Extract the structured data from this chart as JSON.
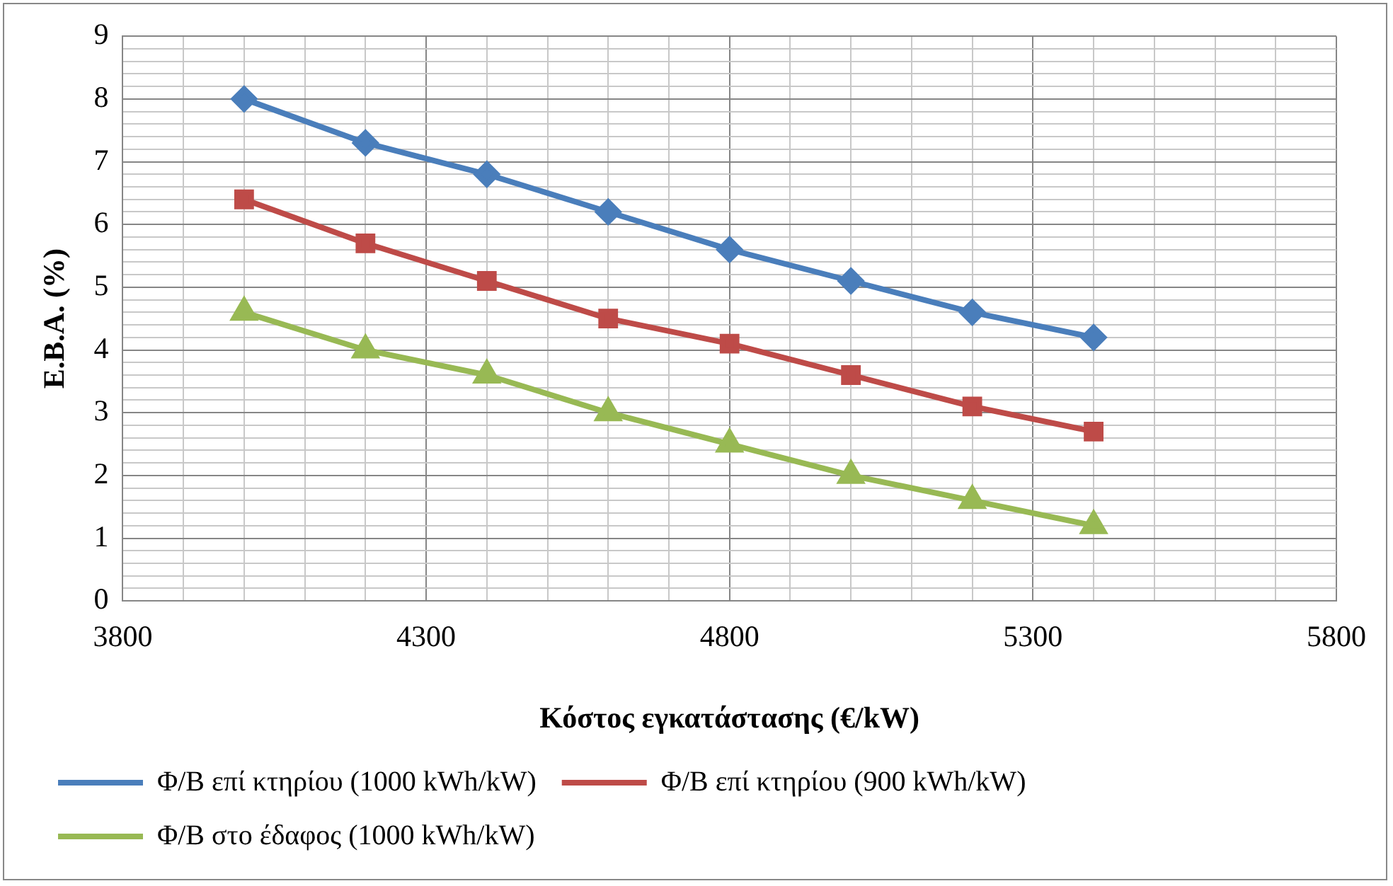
{
  "chart_data": {
    "type": "line",
    "xlabel": "Κόστος εγκατάστασης (€/kW)",
    "ylabel": "Ε.Β.Α. (%)",
    "x": [
      4000,
      4200,
      4400,
      4600,
      4800,
      5000,
      5200,
      5400
    ],
    "series": [
      {
        "name": "Φ/Β επί κτηρίου (1000 kWh/kW)",
        "color": "#4a7ebb",
        "marker": "diamond",
        "values": [
          8.0,
          7.3,
          6.8,
          6.2,
          5.6,
          5.1,
          4.6,
          4.2
        ]
      },
      {
        "name": "Φ/Β επί κτηρίου (900 kWh/kW)",
        "color": "#be4b48",
        "marker": "square",
        "values": [
          6.4,
          5.7,
          5.1,
          4.5,
          4.1,
          3.6,
          3.1,
          2.7
        ]
      },
      {
        "name": "Φ/Β στο έδαφος (1000 kWh/kW)",
        "color": "#98b954",
        "marker": "triangle",
        "values": [
          4.6,
          4.0,
          3.6,
          3.0,
          2.5,
          2.0,
          1.6,
          1.2
        ]
      }
    ],
    "xlim": [
      3800,
      5800
    ],
    "xticks": [
      3800,
      {
        "value": 3900,
        "label": null
      },
      {
        "value": 4000,
        "label": null
      },
      {
        "value": 4100,
        "label": null
      },
      {
        "value": 4200,
        "label": null
      },
      4300,
      {
        "value": 4400,
        "label": null
      },
      {
        "value": 4500,
        "label": null
      },
      {
        "value": 4600,
        "label": null
      },
      {
        "value": 4700,
        "label": null
      },
      4800,
      {
        "value": 4900,
        "label": null
      },
      {
        "value": 5000,
        "label": null
      },
      {
        "value": 5100,
        "label": null
      },
      {
        "value": 5200,
        "label": null
      },
      5300,
      {
        "value": 5400,
        "label": null
      },
      {
        "value": 5500,
        "label": null
      },
      {
        "value": 5600,
        "label": null
      },
      {
        "value": 5700,
        "label": null
      },
      5800
    ],
    "ylim": [
      0,
      9
    ],
    "yticks": [
      0,
      {
        "value": 0.2,
        "label": null
      },
      {
        "value": 0.4,
        "label": null
      },
      {
        "value": 0.6,
        "label": null
      },
      {
        "value": 0.8,
        "label": null
      },
      1,
      {
        "value": 1.2,
        "label": null
      },
      {
        "value": 1.4,
        "label": null
      },
      {
        "value": 1.6,
        "label": null
      },
      {
        "value": 1.8,
        "label": null
      },
      2,
      {
        "value": 2.2,
        "label": null
      },
      {
        "value": 2.4,
        "label": null
      },
      {
        "value": 2.6,
        "label": null
      },
      {
        "value": 2.8,
        "label": null
      },
      3,
      {
        "value": 3.2,
        "label": null
      },
      {
        "value": 3.4,
        "label": null
      },
      {
        "value": 3.6,
        "label": null
      },
      {
        "value": 3.8,
        "label": null
      },
      4,
      {
        "value": 4.2,
        "label": null
      },
      {
        "value": 4.4,
        "label": null
      },
      {
        "value": 4.6,
        "label": null
      },
      {
        "value": 4.8,
        "label": null
      },
      5,
      {
        "value": 5.2,
        "label": null
      },
      {
        "value": 5.4,
        "label": null
      },
      {
        "value": 5.6,
        "label": null
      },
      {
        "value": 5.8,
        "label": null
      },
      6,
      {
        "value": 6.2,
        "label": null
      },
      {
        "value": 6.4,
        "label": null
      },
      {
        "value": 6.6,
        "label": null
      },
      {
        "value": 6.8,
        "label": null
      },
      7,
      {
        "value": 7.2,
        "label": null
      },
      {
        "value": 7.4,
        "label": null
      },
      {
        "value": 7.6,
        "label": null
      },
      {
        "value": 7.8,
        "label": null
      },
      8,
      {
        "value": 8.2,
        "label": null
      },
      {
        "value": 8.4,
        "label": null
      },
      {
        "value": 8.6,
        "label": null
      },
      {
        "value": 8.8,
        "label": null
      },
      9
    ],
    "grid": true,
    "legend": "bottom",
    "line_style": "solid"
  }
}
